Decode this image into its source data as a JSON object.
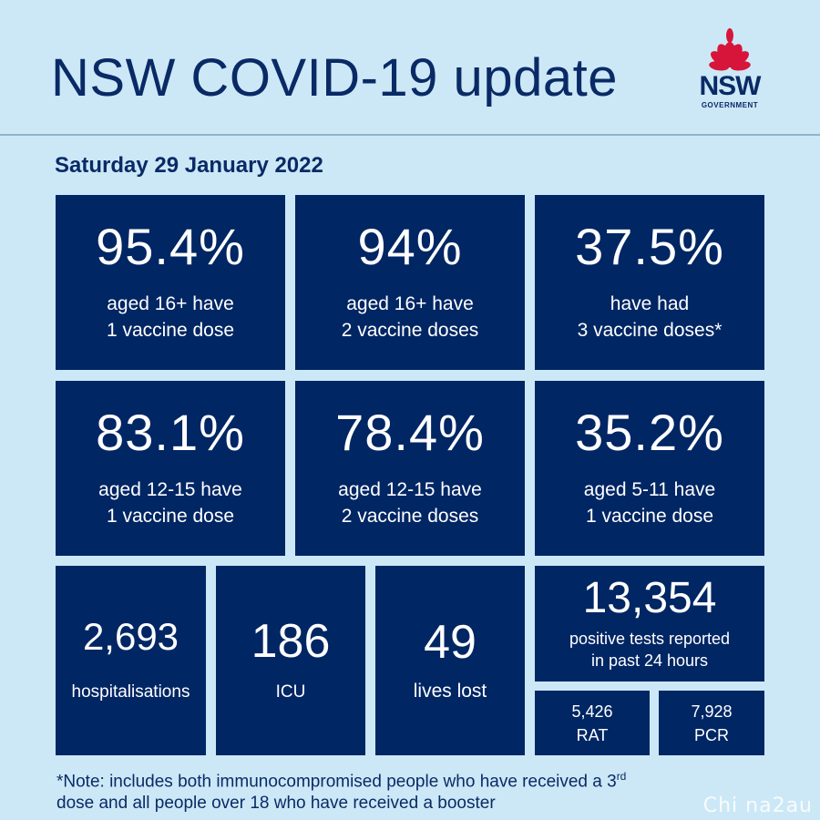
{
  "header": {
    "title": "NSW COVID-19 update",
    "date": "Saturday 29 January 2022",
    "logo": {
      "word": "NSW",
      "sub": "GOVERNMENT",
      "icon": "waratah-icon"
    }
  },
  "stats_row1": [
    {
      "value": "95.4%",
      "line1": "aged 16+ have",
      "line2": "1 vaccine dose"
    },
    {
      "value": "94%",
      "line1": "aged 16+ have",
      "line2": "2 vaccine doses"
    },
    {
      "value": "37.5%",
      "line1": "have had",
      "line2": "3 vaccine doses*"
    }
  ],
  "stats_row2": [
    {
      "value": "83.1%",
      "line1": "aged 12-15 have",
      "line2": "1 vaccine dose"
    },
    {
      "value": "78.4%",
      "line1": "aged 12-15 have",
      "line2": "2 vaccine doses"
    },
    {
      "value": "35.2%",
      "line1": "aged 5-11 have",
      "line2": "1 vaccine dose"
    }
  ],
  "stats_row3": {
    "hospitalisations": {
      "value": "2,693",
      "label": "hospitalisations"
    },
    "icu": {
      "value": "186",
      "label": "ICU"
    },
    "deaths": {
      "value": "49",
      "label": "lives lost"
    },
    "positive": {
      "value": "13,354",
      "line1": "positive tests reported",
      "line2": "in past 24 hours"
    },
    "rat": {
      "value": "5,426",
      "label": "RAT"
    },
    "pcr": {
      "value": "7,928",
      "label": "PCR"
    }
  },
  "note": {
    "line1_pre": "*Note: includes both immunocompromised  people who have received a 3",
    "line1_sup": "rd",
    "line2": "dose and all people over 18 who have received a booster"
  },
  "watermark": "Chi na2au",
  "colors": {
    "background": "#cce8f7",
    "tile": "#002664",
    "accent": "#d7153a",
    "text": "#0a2a66"
  }
}
